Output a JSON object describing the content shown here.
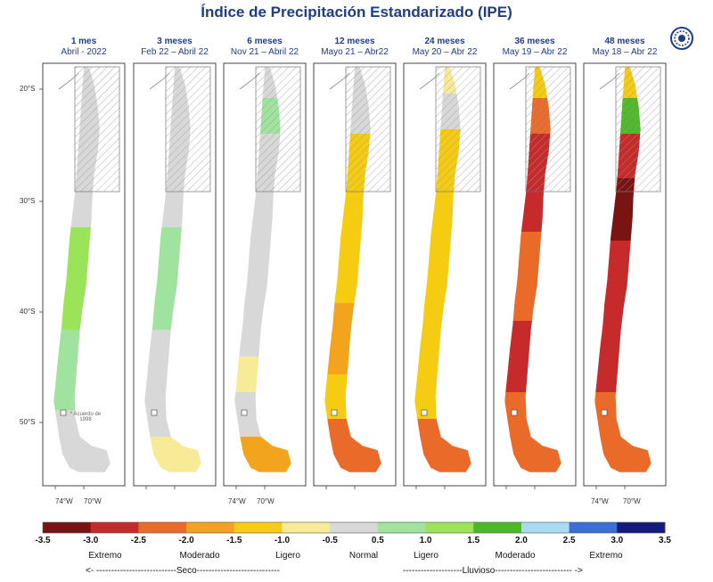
{
  "title": "Índice de Precipitación Estandarizado (IPE)",
  "logo_icon": "institution-seal-icon",
  "panels": [
    {
      "title": "1 mes",
      "subtitle": "Abril - 2022"
    },
    {
      "title": "3 meses",
      "subtitle": "Feb 22 – Abril 22"
    },
    {
      "title": "6 meses",
      "subtitle": "Nov 21 – Abril 22"
    },
    {
      "title": "12 meses",
      "subtitle": "Mayo 21 – Abr22"
    },
    {
      "title": "24 meses",
      "subtitle": "May 20 – Abr 22"
    },
    {
      "title": "36 meses",
      "subtitle": "May 19 – Abr 22"
    },
    {
      "title": "48 meses",
      "subtitle": "May 18 – Abr 22"
    }
  ],
  "lat_labels": [
    "20°S",
    "30°S",
    "40°S",
    "50°S"
  ],
  "lon_labels": [
    "74°W",
    "70°W"
  ],
  "note": "* Acuerdo de 1998",
  "colorbar": {
    "ticks": [
      "-3.5",
      "-3.0",
      "-2.5",
      "-2.0",
      "-1.5",
      "-1.0",
      "-0.5",
      "0.5",
      "1.0",
      "1.5",
      "2.0",
      "2.5",
      "3.0",
      "3.5"
    ],
    "colors": [
      "#7a1414",
      "#c62a2a",
      "#ea6a2a",
      "#f2a51c",
      "#f5cc12",
      "#f7eb98",
      "#d8d8d8",
      "#9fe39f",
      "#9be45a",
      "#4fb82a",
      "#a7dcf3",
      "#3c6fd6",
      "#141a7c"
    ],
    "categories": [
      "Extremo",
      "Moderado",
      "Ligero",
      "Normal",
      "Ligero",
      "Moderado",
      "Extremo"
    ],
    "dry_label": "<- ---------------------------Seco----------------------------",
    "wet_label": "--------------------Lluvioso-------------------------- ->"
  }
}
